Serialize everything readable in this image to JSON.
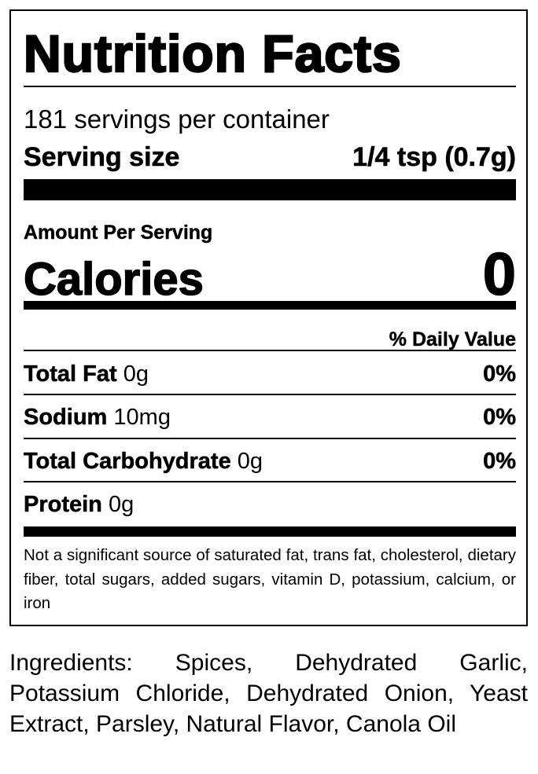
{
  "title": "Nutrition Facts",
  "servings_per_container": "181 servings per container",
  "serving_size": {
    "label": "Serving size",
    "value": "1/4 tsp (0.7g)"
  },
  "amount_per_serving": "Amount Per Serving",
  "calories": {
    "label": "Calories",
    "value": "0"
  },
  "daily_value_header": "% Daily Value",
  "nutrients": [
    {
      "name": "Total Fat",
      "amount": "0g",
      "dv": "0%"
    },
    {
      "name": "Sodium",
      "amount": "10mg",
      "dv": "0%"
    },
    {
      "name": "Total Carbohydrate",
      "amount": "0g",
      "dv": "0%"
    },
    {
      "name": "Protein",
      "amount": "0g",
      "dv": ""
    }
  ],
  "footnote": "Not a significant source of saturated fat, trans fat, cholesterol, dietary fiber, total sugars, added sugars, vitamin D, potassium, calcium, or iron",
  "ingredients": "Ingredients: Spices, Dehydrated Garlic, Potassium Chloride, Dehydrated Onion, Yeast Extract, Parsley, Natural Flavor, Canola Oil"
}
